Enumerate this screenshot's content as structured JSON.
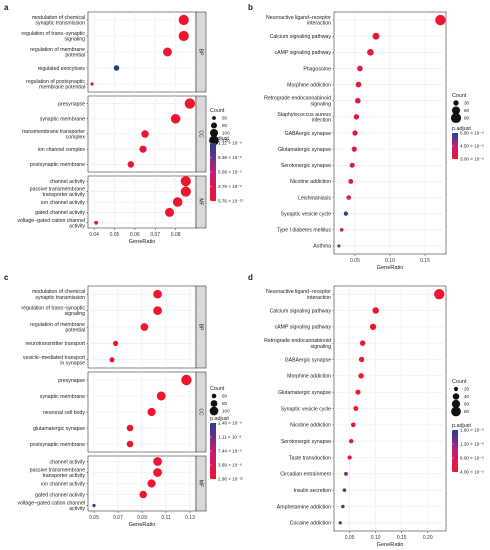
{
  "chart_data": [
    {
      "panel": "a",
      "type": "scatter",
      "xlabel": "GeneRatio",
      "xlim": [
        0.037,
        0.09
      ],
      "xticks": [
        0.04,
        0.05,
        0.06,
        0.07,
        0.08
      ],
      "xtick_labels": [
        "0.04",
        "0.05",
        "0.06",
        "0.07",
        "0.08"
      ],
      "groups": [
        {
          "name": "BP",
          "terms": [
            {
              "label": [
                "modulation of chemical",
                "synaptic transmission"
              ],
              "x": 0.084,
              "count": 125,
              "padj": 1e-10
            },
            {
              "label": [
                "regulation of trans−synaptic",
                "signaling"
              ],
              "x": 0.084,
              "count": 125,
              "padj": 1e-10
            },
            {
              "label": [
                "regulation of membrane",
                "potential"
              ],
              "x": 0.076,
              "count": 110,
              "padj": 4e-10
            },
            {
              "label": [
                "regulated exocytosis"
              ],
              "x": 0.051,
              "count": 75,
              "padj": 1.11e-08
            },
            {
              "label": [
                "regulation of postsynaptic",
                "membrane potential"
              ],
              "x": 0.039,
              "count": 55,
              "padj": 7e-10
            }
          ]
        },
        {
          "name": "CC",
          "terms": [
            {
              "label": [
                "presynapse"
              ],
              "x": 0.087,
              "count": 128,
              "padj": 1e-10
            },
            {
              "label": [
                "synaptic membrane"
              ],
              "x": 0.08,
              "count": 118,
              "padj": 1e-10
            },
            {
              "label": [
                "transmembrane transporter",
                "complex"
              ],
              "x": 0.065,
              "count": 95,
              "padj": 4e-10
            },
            {
              "label": [
                "ion channel complex"
              ],
              "x": 0.064,
              "count": 92,
              "padj": 4e-10
            },
            {
              "label": [
                "postsynaptic membrane"
              ],
              "x": 0.058,
              "count": 85,
              "padj": 4e-10
            }
          ]
        },
        {
          "name": "MF",
          "terms": [
            {
              "label": [
                "channel activity"
              ],
              "x": 0.085,
              "count": 125,
              "padj": 1e-10
            },
            {
              "label": [
                "passive transmembrane",
                "transporter activity"
              ],
              "x": 0.085,
              "count": 125,
              "padj": 1e-10
            },
            {
              "label": [
                "ion channel activity"
              ],
              "x": 0.081,
              "count": 118,
              "padj": 1e-10
            },
            {
              "label": [
                "gated channel activity"
              ],
              "x": 0.077,
              "count": 112,
              "padj": 1e-10
            },
            {
              "label": [
                "voltage−gated cation channel",
                "activity"
              ],
              "x": 0.041,
              "count": 60,
              "padj": 8e-10
            }
          ]
        }
      ],
      "legend": {
        "count_title": "Count",
        "count_values": [
          60,
          80,
          100,
          120
        ],
        "color_title": "p.adjust",
        "color_labels": [
          "1.12 × 10⁻⁸",
          "8.38 × 10⁻⁹",
          "5.58 × 10⁻⁹",
          "2.79 × 10⁻⁹",
          "5.76 × 10⁻¹³"
        ]
      }
    },
    {
      "panel": "b",
      "type": "scatter",
      "xlabel": "GeneRatio",
      "xlim": [
        0.02,
        0.18
      ],
      "xticks": [
        0.05,
        0.1,
        0.15
      ],
      "xtick_labels": [
        "0.05",
        "0.10",
        "0.15"
      ],
      "terms": [
        {
          "label": [
            "Neuroactive ligand−receptor",
            "interaction"
          ],
          "x": 0.172,
          "count": 95,
          "padj": 1e-10
        },
        {
          "label": [
            "Calcium signaling pathway"
          ],
          "x": 0.08,
          "count": 45,
          "padj": 2e-10
        },
        {
          "label": [
            "cAMP signaling pathway"
          ],
          "x": 0.072,
          "count": 42,
          "padj": 5e-10
        },
        {
          "label": [
            "Phagosome"
          ],
          "x": 0.057,
          "count": 33,
          "padj": 9e-10
        },
        {
          "label": [
            "Morphine addiction"
          ],
          "x": 0.055,
          "count": 32,
          "padj": 5e-10
        },
        {
          "label": [
            "Retrograde endocannabinoid",
            "signaling"
          ],
          "x": 0.054,
          "count": 32,
          "padj": 1.2e-09
        },
        {
          "label": [
            "Staphylococcus aureus",
            "infection"
          ],
          "x": 0.052,
          "count": 30,
          "padj": 8e-10
        },
        {
          "label": [
            "GABAergic synapse"
          ],
          "x": 0.05,
          "count": 29,
          "padj": 6e-10
        },
        {
          "label": [
            "Glutamatergic synapse"
          ],
          "x": 0.049,
          "count": 28,
          "padj": 8e-10
        },
        {
          "label": [
            "Serotonergic synapse"
          ],
          "x": 0.046,
          "count": 27,
          "padj": 1.2e-09
        },
        {
          "label": [
            "Nicotine addiction"
          ],
          "x": 0.044,
          "count": 25,
          "padj": 6e-10
        },
        {
          "label": [
            "Leishmaniasis"
          ],
          "x": 0.041,
          "count": 23,
          "padj": 9e-10
        },
        {
          "label": [
            "Synaptic vesicle cycle"
          ],
          "x": 0.037,
          "count": 20,
          "padj": 5.5e-09
        },
        {
          "label": [
            "Type I diabetes mellitus"
          ],
          "x": 0.031,
          "count": 16,
          "padj": 2.2e-09
        },
        {
          "label": [
            "Asthma"
          ],
          "x": 0.027,
          "count": 13,
          "padj": 3.8e-09
        }
      ],
      "legend": {
        "count_title": "Count",
        "count_values": [
          30,
          60,
          90
        ],
        "color_title": "p.adjust",
        "color_labels": [
          "6.00 × 10⁻⁹",
          "4.50 × 10⁻⁹",
          "3.00 × 10⁻⁹"
        ]
      }
    },
    {
      "panel": "c",
      "type": "scatter",
      "xlabel": "GeneRatio",
      "xlim": [
        0.045,
        0.135
      ],
      "xticks": [
        0.05,
        0.07,
        0.09,
        0.11,
        0.13
      ],
      "xtick_labels": [
        "0.05",
        "0.07",
        "0.09",
        "0.11",
        "0.13"
      ],
      "groups": [
        {
          "name": "BP",
          "terms": [
            {
              "label": [
                "modulation of chemical",
                "synaptic transmission"
              ],
              "x": 0.103,
              "count": 100,
              "padj": 1e-10
            },
            {
              "label": [
                "regulation of trans−synaptic",
                "signaling"
              ],
              "x": 0.103,
              "count": 100,
              "padj": 1e-10
            },
            {
              "label": [
                "regulation of membrane",
                "potential"
              ],
              "x": 0.092,
              "count": 90,
              "padj": 3e-10
            },
            {
              "label": [
                "neurotransmitter transport"
              ],
              "x": 0.068,
              "count": 65,
              "padj": 5e-10
            },
            {
              "label": [
                "vesicle−mediated transport",
                "in synapse"
              ],
              "x": 0.065,
              "count": 63,
              "padj": 5e-10
            }
          ]
        },
        {
          "name": "CC",
          "terms": [
            {
              "label": [
                "presynapse"
              ],
              "x": 0.127,
              "count": 120,
              "padj": 1e-10
            },
            {
              "label": [
                "synaptic membrane"
              ],
              "x": 0.106,
              "count": 102,
              "padj": 1e-10
            },
            {
              "label": [
                "neuronal cell body"
              ],
              "x": 0.098,
              "count": 95,
              "padj": 2e-10
            },
            {
              "label": [
                "glutamatergic synapse"
              ],
              "x": 0.08,
              "count": 78,
              "padj": 3e-10
            },
            {
              "label": [
                "postsynaptic membrane"
              ],
              "x": 0.08,
              "count": 78,
              "padj": 3e-10
            }
          ]
        },
        {
          "name": "MF",
          "terms": [
            {
              "label": [
                "channel activity"
              ],
              "x": 0.103,
              "count": 100,
              "padj": 1e-10
            },
            {
              "label": [
                "passive transmembrane",
                "transporter activity"
              ],
              "x": 0.103,
              "count": 100,
              "padj": 1e-10
            },
            {
              "label": [
                "ion channel activity"
              ],
              "x": 0.098,
              "count": 95,
              "padj": 1e-10
            },
            {
              "label": [
                "gated channel activity"
              ],
              "x": 0.091,
              "count": 88,
              "padj": 2e-10
            },
            {
              "label": [
                "voltage−gated cation channel",
                "activity"
              ],
              "x": 0.05,
              "count": 48,
              "padj": 1.48e-08
            }
          ]
        }
      ],
      "legend": {
        "count_title": "Count",
        "count_values": [
          60,
          80,
          100
        ],
        "color_title": "p.adjust",
        "color_labels": [
          "1.48 × 10⁻⁸",
          "1.11 × 10⁻⁸",
          "7.44 × 10⁻⁹",
          "3.69 × 10⁻⁹",
          "2.96 × 10⁻¹²"
        ]
      }
    },
    {
      "panel": "d",
      "type": "scatter",
      "xlabel": "GeneRatio",
      "xlim": [
        0.02,
        0.235
      ],
      "xticks": [
        0.05,
        0.1,
        0.15,
        0.2
      ],
      "xtick_labels": [
        "0.05",
        "0.10",
        "0.15",
        "0.20"
      ],
      "terms": [
        {
          "label": [
            "Neuroactive ligand−receptor",
            "interaction"
          ],
          "x": 0.222,
          "count": 90,
          "padj": 1e-10
        },
        {
          "label": [
            "Calcium signaling pathway"
          ],
          "x": 0.1,
          "count": 40,
          "padj": 3e-10
        },
        {
          "label": [
            "cAMP signaling pathway"
          ],
          "x": 0.095,
          "count": 38,
          "padj": 4e-10
        },
        {
          "label": [
            "Retrograde endocannabinoid",
            "signaling"
          ],
          "x": 0.075,
          "count": 30,
          "padj": 6e-10
        },
        {
          "label": [
            "GABAergic synapse"
          ],
          "x": 0.073,
          "count": 29,
          "padj": 4e-10
        },
        {
          "label": [
            "Morphine addiction"
          ],
          "x": 0.072,
          "count": 29,
          "padj": 6e-10
        },
        {
          "label": [
            "Glutamatergic synapse"
          ],
          "x": 0.066,
          "count": 26,
          "padj": 8e-10
        },
        {
          "label": [
            "Synaptic vesicle cycle"
          ],
          "x": 0.062,
          "count": 25,
          "padj": 8e-10
        },
        {
          "label": [
            "Nicotine addiction"
          ],
          "x": 0.057,
          "count": 23,
          "padj": 6e-10
        },
        {
          "label": [
            "Serotonergic synapse"
          ],
          "x": 0.053,
          "count": 21,
          "padj": 8e-10
        },
        {
          "label": [
            "Taste transduction"
          ],
          "x": 0.05,
          "count": 20,
          "padj": 1e-09
        },
        {
          "label": [
            "Circadian entrainment"
          ],
          "x": 0.043,
          "count": 17,
          "padj": 1.3e-08
        },
        {
          "label": [
            "Insulin secretion"
          ],
          "x": 0.04,
          "count": 16,
          "padj": 1.4e-08
        },
        {
          "label": [
            "Amphetamine addiction"
          ],
          "x": 0.037,
          "count": 15,
          "padj": 1.5e-08
        },
        {
          "label": [
            "Cocaine addiction"
          ],
          "x": 0.032,
          "count": 13,
          "padj": 1.8e-08
        }
      ],
      "legend": {
        "count_title": "Count",
        "count_values": [
          20,
          40,
          60,
          80
        ],
        "color_title": "p.adjust",
        "color_labels": [
          "1.60 × 10⁻⁸",
          "1.20 × 10⁻⁸",
          "8.00 × 10⁻⁹",
          "4.00 × 10⁻⁹"
        ]
      }
    }
  ],
  "style": {
    "gradient_low": "#F0152E",
    "gradient_mid": "#C21E7A",
    "gradient_high": "#1F3F96",
    "grid": "#EBEBEB",
    "panel_bg": "#FFFFFF",
    "strip_bg": "#D9D9D9"
  }
}
